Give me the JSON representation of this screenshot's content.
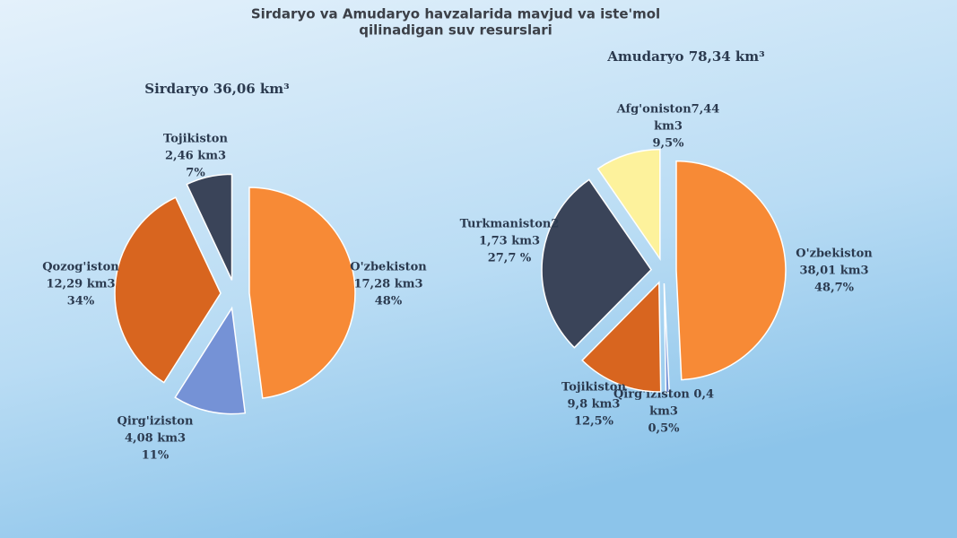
{
  "title": [
    "Sirdaryo va Amudaryo havzalarida mavjud va iste'mol",
    "qilinadigan suv resurslari"
  ],
  "chart_data": [
    {
      "type": "pie",
      "title": "Sirdaryo 36,06 km³",
      "categories": [
        "O'zbekiston",
        "Qirg'iziston",
        "Qozog'iston",
        "Tojikiston"
      ],
      "volumes": [
        "17,28 km3",
        "4,08 km3",
        "12,29 km3",
        "2,46 km3"
      ],
      "values": [
        48,
        11,
        34,
        7
      ],
      "value_labels": [
        "48%",
        "11%",
        "34%",
        "7%"
      ],
      "colors": [
        "#f78a36",
        "#7592d6",
        "#d8651f",
        "#3a4459"
      ]
    },
    {
      "type": "pie",
      "title": "Amudaryo 78,34 km³",
      "categories": [
        "O'zbekiston",
        "Qirg'iziston 0,4",
        "Tojikiston",
        "Turkmaniston2",
        "Afg'oniston7,44"
      ],
      "volumes": [
        "38,01 km3",
        "km3",
        "9,8 km3",
        "1,73 km3",
        "km3"
      ],
      "values": [
        48.7,
        0.5,
        12.5,
        27.7,
        9.5
      ],
      "value_labels": [
        "48,7%",
        "0,5%",
        "12,5%",
        "27,7 %",
        "9,5%"
      ],
      "colors": [
        "#f78a36",
        "#7592d6",
        "#d8651f",
        "#3a4459",
        "#fdf29c"
      ]
    }
  ]
}
